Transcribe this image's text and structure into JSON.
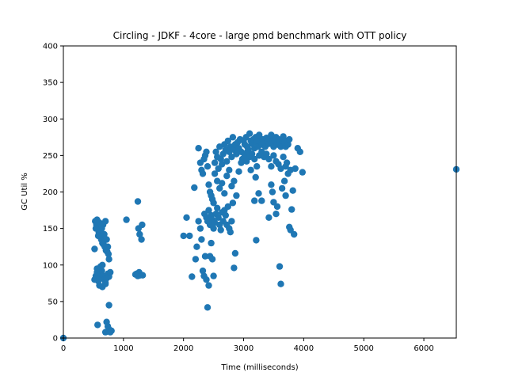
{
  "chart_data": {
    "type": "scatter",
    "title": "Circling - JDKF - 4core -  large pmd benchmark with OTT policy",
    "xlabel": "Time (milliseconds)",
    "ylabel": "GC Util %",
    "xlim": [
      0,
      6540
    ],
    "ylim": [
      0,
      400
    ],
    "xticks": [
      0,
      1000,
      2000,
      3000,
      4000,
      5000,
      6000
    ],
    "yticks": [
      0,
      50,
      100,
      150,
      200,
      250,
      300,
      350,
      400
    ],
    "grid": false,
    "marker_color": "#1f77b4",
    "series": [
      {
        "points": [
          [
            0,
            0
          ],
          [
            520,
            80
          ],
          [
            540,
            85
          ],
          [
            560,
            90
          ],
          [
            580,
            78
          ],
          [
            600,
            82
          ],
          [
            620,
            88
          ],
          [
            640,
            92
          ],
          [
            660,
            85
          ],
          [
            680,
            80
          ],
          [
            700,
            76
          ],
          [
            720,
            82
          ],
          [
            740,
            88
          ],
          [
            760,
            84
          ],
          [
            780,
            90
          ],
          [
            600,
            72
          ],
          [
            650,
            70
          ],
          [
            700,
            74
          ],
          [
            560,
            95
          ],
          [
            620,
            98
          ],
          [
            530,
            160
          ],
          [
            550,
            155
          ],
          [
            570,
            150
          ],
          [
            590,
            145
          ],
          [
            610,
            140
          ],
          [
            630,
            135
          ],
          [
            650,
            130
          ],
          [
            670,
            128
          ],
          [
            690,
            125
          ],
          [
            710,
            120
          ],
          [
            730,
            118
          ],
          [
            750,
            115
          ],
          [
            560,
            162
          ],
          [
            600,
            158
          ],
          [
            640,
            150
          ],
          [
            680,
            142
          ],
          [
            720,
            135
          ],
          [
            740,
            125
          ],
          [
            760,
            108
          ],
          [
            700,
            160
          ],
          [
            660,
            155
          ],
          [
            620,
            148
          ],
          [
            580,
            140
          ],
          [
            540,
            150
          ],
          [
            520,
            122
          ],
          [
            570,
            18
          ],
          [
            700,
            8
          ],
          [
            720,
            22
          ],
          [
            740,
            16
          ],
          [
            760,
            12
          ],
          [
            780,
            8
          ],
          [
            800,
            10
          ],
          [
            760,
            45
          ],
          [
            650,
            100
          ],
          [
            1050,
            162
          ],
          [
            1220,
            88
          ],
          [
            1240,
            85
          ],
          [
            1260,
            90
          ],
          [
            1280,
            86
          ],
          [
            1320,
            86
          ],
          [
            1200,
            87
          ],
          [
            1240,
            187
          ],
          [
            1250,
            150
          ],
          [
            1270,
            142
          ],
          [
            1300,
            135
          ],
          [
            1310,
            155
          ],
          [
            2000,
            140
          ],
          [
            2050,
            165
          ],
          [
            2100,
            140
          ],
          [
            2140,
            84
          ],
          [
            2180,
            206
          ],
          [
            2200,
            108
          ],
          [
            2220,
            125
          ],
          [
            2250,
            160
          ],
          [
            2280,
            150
          ],
          [
            2300,
            135
          ],
          [
            2320,
            92
          ],
          [
            2340,
            85
          ],
          [
            2360,
            112
          ],
          [
            2380,
            80
          ],
          [
            2400,
            42
          ],
          [
            2420,
            72
          ],
          [
            2440,
            112
          ],
          [
            2460,
            130
          ],
          [
            2480,
            108
          ],
          [
            2500,
            85
          ],
          [
            2250,
            260
          ],
          [
            2280,
            240
          ],
          [
            2300,
            230
          ],
          [
            2320,
            225
          ],
          [
            2340,
            245
          ],
          [
            2360,
            250
          ],
          [
            2380,
            255
          ],
          [
            2400,
            235
          ],
          [
            2420,
            210
          ],
          [
            2440,
            200
          ],
          [
            2460,
            195
          ],
          [
            2480,
            190
          ],
          [
            2500,
            185
          ],
          [
            2350,
            170
          ],
          [
            2380,
            165
          ],
          [
            2400,
            160
          ],
          [
            2420,
            175
          ],
          [
            2440,
            155
          ],
          [
            2460,
            168
          ],
          [
            2480,
            162
          ],
          [
            2500,
            150
          ],
          [
            2520,
            158
          ],
          [
            2540,
            170
          ],
          [
            2560,
            178
          ],
          [
            2580,
            165
          ],
          [
            2600,
            155
          ],
          [
            2620,
            148
          ],
          [
            2640,
            172
          ],
          [
            2660,
            160
          ],
          [
            2680,
            175
          ],
          [
            2700,
            168
          ],
          [
            2720,
            155
          ],
          [
            2740,
            180
          ],
          [
            2760,
            150
          ],
          [
            2780,
            145
          ],
          [
            2800,
            160
          ],
          [
            2820,
            185
          ],
          [
            2840,
            96
          ],
          [
            2860,
            116
          ],
          [
            2520,
            240
          ],
          [
            2540,
            255
          ],
          [
            2560,
            248
          ],
          [
            2580,
            232
          ],
          [
            2600,
            262
          ],
          [
            2620,
            245
          ],
          [
            2640,
            238
          ],
          [
            2660,
            252
          ],
          [
            2680,
            265
          ],
          [
            2700,
            258
          ],
          [
            2720,
            242
          ],
          [
            2740,
            270
          ],
          [
            2760,
            255
          ],
          [
            2780,
            262
          ],
          [
            2800,
            248
          ],
          [
            2820,
            275
          ],
          [
            2840,
            258
          ],
          [
            2860,
            265
          ],
          [
            2880,
            252
          ],
          [
            2900,
            268
          ],
          [
            2920,
            260
          ],
          [
            2940,
            272
          ],
          [
            2960,
            255
          ],
          [
            2980,
            245
          ],
          [
            2520,
            225
          ],
          [
            2560,
            215
          ],
          [
            2600,
            205
          ],
          [
            2640,
            212
          ],
          [
            2680,
            198
          ],
          [
            2720,
            222
          ],
          [
            2760,
            230
          ],
          [
            2800,
            208
          ],
          [
            2840,
            215
          ],
          [
            2880,
            195
          ],
          [
            2920,
            228
          ],
          [
            2960,
            240
          ],
          [
            3000,
            270
          ],
          [
            3020,
            265
          ],
          [
            3040,
            275
          ],
          [
            3060,
            262
          ],
          [
            3080,
            258
          ],
          [
            3100,
            280
          ],
          [
            3120,
            270
          ],
          [
            3140,
            266
          ],
          [
            3160,
            272
          ],
          [
            3180,
            260
          ],
          [
            3200,
            275
          ],
          [
            3220,
            268
          ],
          [
            3240,
            262
          ],
          [
            3260,
            278
          ],
          [
            3280,
            270
          ],
          [
            3300,
            265
          ],
          [
            3320,
            272
          ],
          [
            3340,
            268
          ],
          [
            3360,
            262
          ],
          [
            3380,
            274
          ],
          [
            3400,
            270
          ],
          [
            3420,
            266
          ],
          [
            3440,
            272
          ],
          [
            3460,
            278
          ],
          [
            3480,
            268
          ],
          [
            3500,
            262
          ],
          [
            3520,
            270
          ],
          [
            3540,
            275
          ],
          [
            3560,
            265
          ],
          [
            3580,
            272
          ],
          [
            3600,
            268
          ],
          [
            3620,
            262
          ],
          [
            3640,
            270
          ],
          [
            3660,
            276
          ],
          [
            3680,
            268
          ],
          [
            3700,
            262
          ],
          [
            3720,
            270
          ],
          [
            3740,
            265
          ],
          [
            3760,
            272
          ],
          [
            3020,
            250
          ],
          [
            3060,
            255
          ],
          [
            3100,
            248
          ],
          [
            3140,
            252
          ],
          [
            3180,
            245
          ],
          [
            3220,
            235
          ],
          [
            3260,
            250
          ],
          [
            3300,
            255
          ],
          [
            3340,
            248
          ],
          [
            3380,
            252
          ],
          [
            3420,
            245
          ],
          [
            3460,
            235
          ],
          [
            3500,
            250
          ],
          [
            3540,
            242
          ],
          [
            3580,
            238
          ],
          [
            3620,
            232
          ],
          [
            3660,
            248
          ],
          [
            3700,
            235
          ],
          [
            3740,
            225
          ],
          [
            3780,
            230
          ],
          [
            3050,
            242
          ],
          [
            3120,
            230
          ],
          [
            3200,
            220
          ],
          [
            3180,
            188
          ],
          [
            3210,
            134
          ],
          [
            3250,
            198
          ],
          [
            3300,
            188
          ],
          [
            3420,
            165
          ],
          [
            3460,
            210
          ],
          [
            3480,
            200
          ],
          [
            3500,
            186
          ],
          [
            3540,
            170
          ],
          [
            3560,
            180
          ],
          [
            3600,
            98
          ],
          [
            3620,
            74
          ],
          [
            3640,
            205
          ],
          [
            3680,
            215
          ],
          [
            3700,
            195
          ],
          [
            3720,
            240
          ],
          [
            3760,
            152
          ],
          [
            3780,
            148
          ],
          [
            3800,
            176
          ],
          [
            3820,
            202
          ],
          [
            3840,
            142
          ],
          [
            3860,
            232
          ],
          [
            3900,
            260
          ],
          [
            3940,
            255
          ],
          [
            3980,
            227
          ],
          [
            6540,
            231
          ]
        ]
      }
    ]
  }
}
